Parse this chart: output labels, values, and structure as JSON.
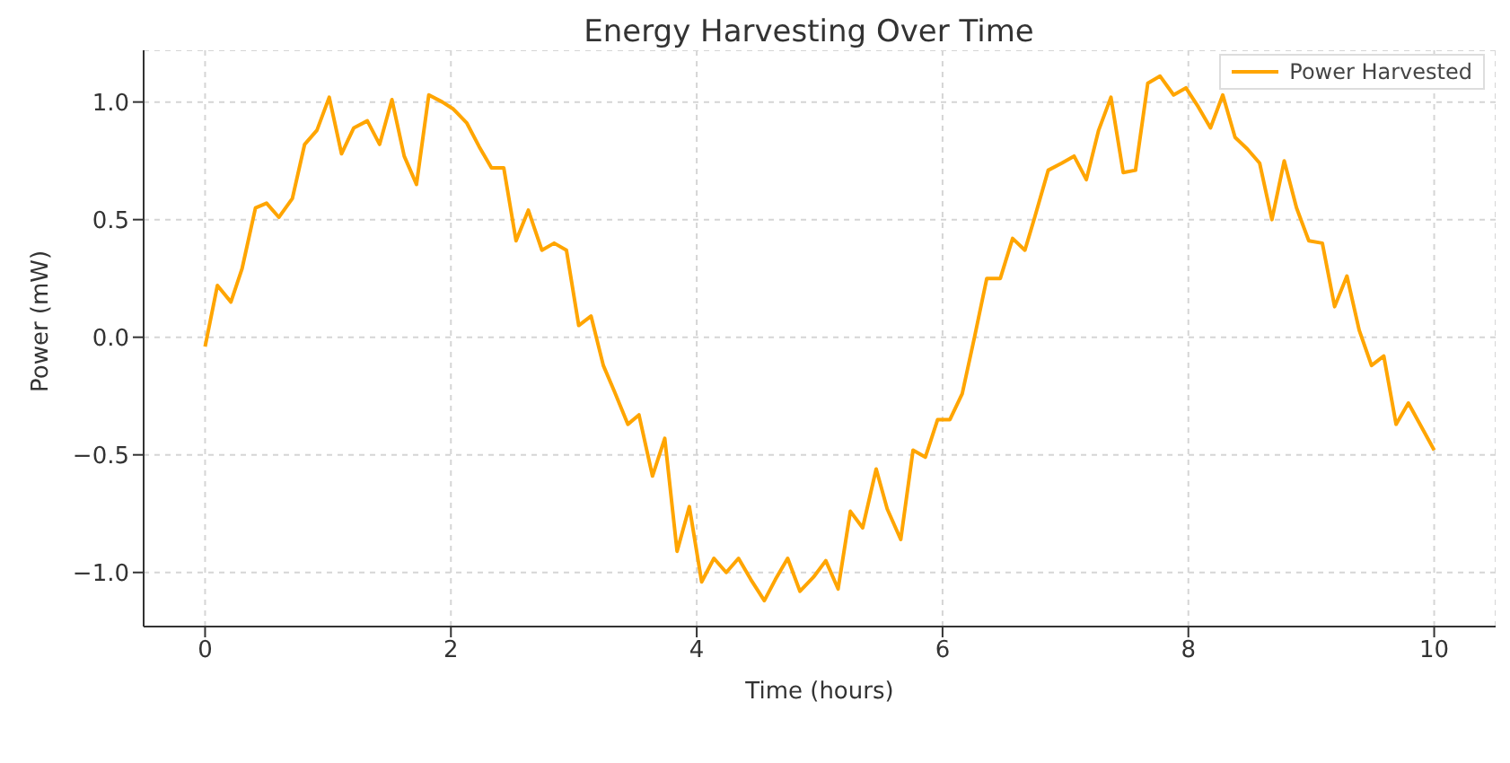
{
  "chart_data": {
    "type": "line",
    "title": "Energy Harvesting Over Time",
    "xlabel": "Time (hours)",
    "ylabel": "Power (mW)",
    "x": [
      0,
      0.1,
      0.21,
      0.3,
      0.41,
      0.5,
      0.6,
      0.71,
      0.81,
      0.91,
      1.01,
      1.11,
      1.21,
      1.32,
      1.42,
      1.52,
      1.62,
      1.72,
      1.82,
      1.93,
      2.02,
      2.13,
      2.23,
      2.33,
      2.43,
      2.53,
      2.63,
      2.74,
      2.84,
      2.94,
      3.04,
      3.14,
      3.24,
      3.33,
      3.44,
      3.53,
      3.64,
      3.74,
      3.84,
      3.94,
      4.04,
      4.14,
      4.24,
      4.34,
      4.44,
      4.55,
      4.64,
      4.74,
      4.84,
      4.95,
      5.05,
      5.15,
      5.25,
      5.35,
      5.46,
      5.55,
      5.66,
      5.76,
      5.86,
      5.96,
      6.06,
      6.16,
      6.26,
      6.36,
      6.47,
      6.57,
      6.67,
      6.75,
      6.86,
      6.97,
      7.07,
      7.17,
      7.27,
      7.37,
      7.47,
      7.57,
      7.67,
      7.77,
      7.88,
      7.98,
      8.08,
      8.18,
      8.28,
      8.38,
      8.48,
      8.58,
      8.68,
      8.78,
      8.88,
      8.98,
      9.09,
      9.19,
      9.29,
      9.39,
      9.49,
      9.59,
      9.69,
      9.79,
      10
    ],
    "series": [
      {
        "name": "Power Harvested",
        "color": "#ffa500",
        "values": [
          -0.04,
          0.22,
          0.15,
          0.29,
          0.55,
          0.57,
          0.51,
          0.59,
          0.82,
          0.88,
          1.02,
          0.78,
          0.89,
          0.92,
          0.82,
          1.01,
          0.77,
          0.65,
          1.03,
          1.0,
          0.97,
          0.91,
          0.81,
          0.72,
          0.72,
          0.41,
          0.54,
          0.37,
          0.4,
          0.37,
          0.05,
          0.09,
          -0.12,
          -0.23,
          -0.37,
          -0.33,
          -0.59,
          -0.43,
          -0.91,
          -0.72,
          -1.04,
          -0.94,
          -1.0,
          -0.94,
          -1.03,
          -1.12,
          -1.03,
          -0.94,
          -1.08,
          -1.02,
          -0.95,
          -1.07,
          -0.74,
          -0.81,
          -0.56,
          -0.73,
          -0.86,
          -0.48,
          -0.51,
          -0.35,
          -0.35,
          -0.24,
          0.0,
          0.25,
          0.25,
          0.42,
          0.37,
          0.51,
          0.71,
          0.74,
          0.77,
          0.67,
          0.88,
          1.02,
          0.7,
          0.71,
          1.08,
          1.11,
          1.03,
          1.06,
          0.98,
          0.89,
          1.03,
          0.85,
          0.8,
          0.74,
          0.5,
          0.75,
          0.55,
          0.41,
          0.4,
          0.13,
          0.26,
          0.03,
          -0.12,
          -0.08,
          -0.37,
          -0.28,
          -0.48
        ]
      }
    ],
    "xlim": [
      -0.5,
      10.5
    ],
    "xticks": [
      0,
      2,
      4,
      6,
      8,
      10
    ],
    "ylim": [
      -1.23,
      1.22
    ],
    "yticks": [
      {
        "value": -1,
        "label": "−1.0"
      },
      {
        "value": -0.5,
        "label": "−0.5"
      },
      {
        "value": 0,
        "label": "0.0"
      },
      {
        "value": 0.5,
        "label": "0.5"
      },
      {
        "value": 1,
        "label": "1.0"
      }
    ],
    "grid": true,
    "line_style": "solid",
    "legend": "top right"
  }
}
